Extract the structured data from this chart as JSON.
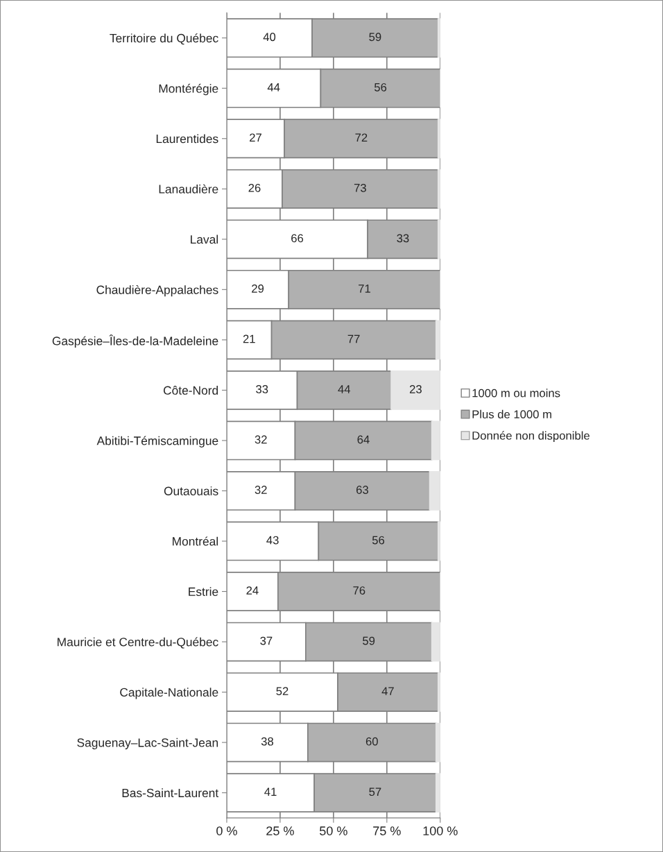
{
  "chart_data": {
    "type": "bar",
    "orientation": "horizontal",
    "stacked": true,
    "categories": [
      "Territoire du Québec",
      "Montérégie",
      "Laurentides",
      "Lanaudière",
      "Laval",
      "Chaudière-Appalaches",
      "Gaspésie–Îles-de-la-Madeleine",
      "Côte-Nord",
      "Abitibi-Témiscamingue",
      "Outaouais",
      "Montréal",
      "Estrie",
      "Mauricie et Centre-du-Québec",
      "Capitale-Nationale",
      "Saguenay–Lac-Saint-Jean",
      "Bas-Saint-Laurent"
    ],
    "series": [
      {
        "name": "1000 m ou moins",
        "color": "#ffffff",
        "values": [
          40,
          44,
          27,
          26,
          66,
          29,
          21,
          33,
          32,
          32,
          43,
          24,
          37,
          52,
          38,
          41
        ],
        "value_labels": [
          "40",
          "44",
          "27",
          "26",
          "66",
          "29",
          "21",
          "33",
          "32",
          "32",
          "43",
          "24",
          "37",
          "52",
          "38",
          "41"
        ]
      },
      {
        "name": "Plus de 1000 m",
        "color": "#b0b0b0",
        "values": [
          59,
          56,
          72,
          73,
          33,
          71,
          77,
          44,
          64,
          63,
          56,
          76,
          59,
          47,
          60,
          57
        ],
        "value_labels": [
          "59",
          "56",
          "72",
          "73",
          "33",
          "71",
          "77",
          "44",
          "64",
          "63",
          "56",
          "76",
          "59",
          "47",
          "60",
          "57"
        ]
      },
      {
        "name": "Donnée non disponible",
        "color": "#e6e6e6",
        "values": [
          1,
          0,
          1,
          1,
          1,
          0,
          2,
          23,
          4,
          5,
          1,
          0,
          4,
          1,
          2,
          2
        ],
        "value_labels": [
          null,
          null,
          null,
          null,
          null,
          null,
          null,
          "23",
          null,
          null,
          null,
          null,
          null,
          null,
          null,
          null
        ]
      }
    ],
    "xlim": [
      0,
      100
    ],
    "xticks": [
      {
        "value": 0,
        "label": "0 %"
      },
      {
        "value": 25,
        "label": "25 %"
      },
      {
        "value": 50,
        "label": "50 %"
      },
      {
        "value": 75,
        "label": "75 %"
      },
      {
        "value": 100,
        "label": "100 %"
      }
    ],
    "grid": "x",
    "legend": "right"
  }
}
